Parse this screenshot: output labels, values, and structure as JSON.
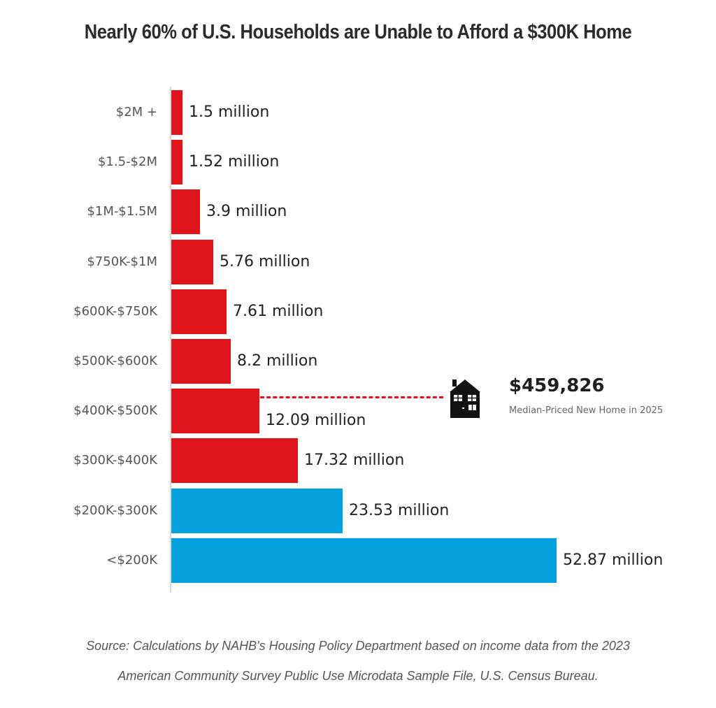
{
  "header": {
    "title": "Nearly 60% of U.S. Households are Unable to Afford a $300K Home"
  },
  "annotation": {
    "price": "$459,826",
    "label": "Median-Priced New Home in 2025",
    "icon": "house-icon"
  },
  "footer": {
    "source_line1": "Source: Calculations by NAHB's Housing Policy Department based on income data from the 2023",
    "source_line2": "American Community Survey Public Use Microdata Sample File, U.S. Census Bureau."
  },
  "colors": {
    "unaffordable": "#e0141b",
    "affordable": "#05a0de",
    "dash": "#e0141b"
  },
  "rows": [
    {
      "category": "$2M +",
      "label": "1.5 million"
    },
    {
      "category": "$1.5-$2M",
      "label": "1.52 million"
    },
    {
      "category": "$1M-$1.5M",
      "label": "3.9 million"
    },
    {
      "category": "$750K-$1M",
      "label": "5.76 million"
    },
    {
      "category": "$600K-$750K",
      "label": "7.61 million"
    },
    {
      "category": "$500K-$600K",
      "label": "8.2 million"
    },
    {
      "category": "$400K-$500K",
      "label": "12.09 million"
    },
    {
      "category": "$300K-$400K",
      "label": "17.32 million"
    },
    {
      "category": "$200K-$300K",
      "label": "23.53 million"
    },
    {
      "category": "<$200K",
      "label": "52.87 million"
    }
  ],
  "chart_data": {
    "type": "bar",
    "orientation": "horizontal",
    "title": "Nearly 60% of U.S. Households are Unable to Afford a $300K Home",
    "xlabel": "",
    "ylabel": "",
    "categories": [
      "$2M +",
      "$1.5-$2M",
      "$1M-$1.5M",
      "$750K-$1M",
      "$600K-$750K",
      "$500K-$600K",
      "$400K-$500K",
      "$300K-$400K",
      "$200K-$300K",
      "<$200K"
    ],
    "values": [
      1.5,
      1.52,
      3.9,
      5.76,
      7.61,
      8.2,
      12.09,
      17.32,
      23.53,
      52.87
    ],
    "units": "million households",
    "bar_colors": [
      "#e0141b",
      "#e0141b",
      "#e0141b",
      "#e0141b",
      "#e0141b",
      "#e0141b",
      "#e0141b",
      "#e0141b",
      "#05a0de",
      "#05a0de"
    ],
    "annotations": [
      {
        "text": "$459,826",
        "subtext": "Median-Priced New Home in 2025",
        "at_category": "$400K-$500K"
      }
    ],
    "grid": false,
    "legend": null,
    "source": "Source: Calculations by NAHB's Housing Policy Department based on income data from the 2023 American Community Survey Public Use Microdata Sample File, U.S. Census Bureau."
  }
}
